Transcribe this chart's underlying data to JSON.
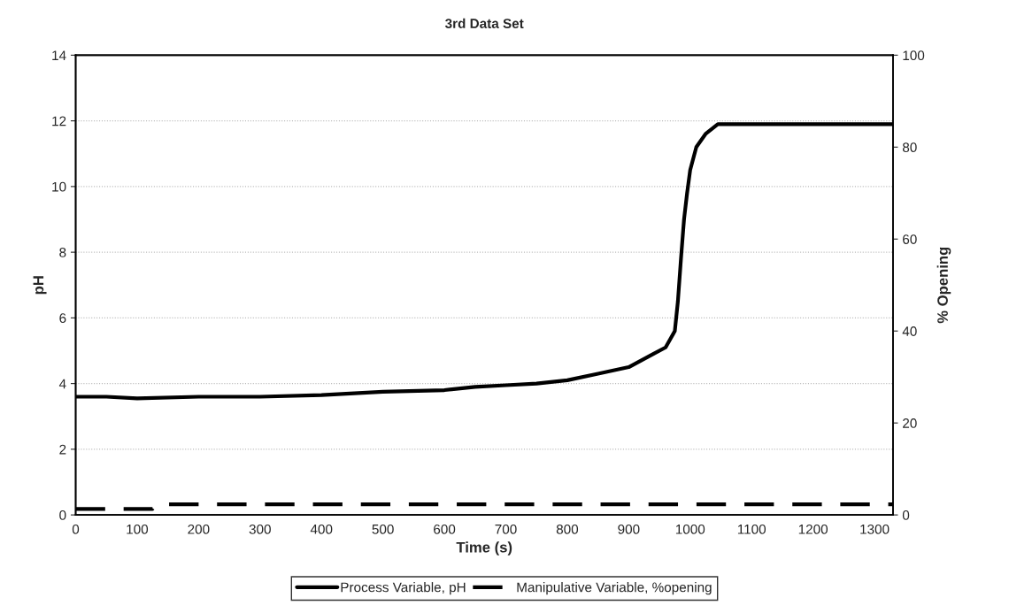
{
  "chart_data": {
    "type": "line",
    "title": "3rd Data Set",
    "xlabel": "Time (s)",
    "ylabel": "pH",
    "y2label": "% Opening",
    "xlim": [
      0,
      1330
    ],
    "xticks": [
      0,
      100,
      200,
      300,
      400,
      500,
      600,
      700,
      800,
      900,
      1000,
      1100,
      1200,
      1300
    ],
    "ylim": [
      0,
      14
    ],
    "yticks": [
      0,
      2,
      4,
      6,
      8,
      10,
      12,
      14
    ],
    "y2lim": [
      0,
      100
    ],
    "y2ticks": [
      0,
      20,
      40,
      60,
      80,
      100
    ],
    "grid": "y",
    "legend": "bottom",
    "series": [
      {
        "name": "Process Variable, pH",
        "color": "#000000",
        "line_style": "solid",
        "x": [
          0,
          50,
          100,
          200,
          300,
          400,
          500,
          600,
          650,
          700,
          750,
          800,
          850,
          900,
          920,
          940,
          960,
          975,
          980,
          985,
          990,
          995,
          1000,
          1010,
          1025,
          1045,
          1100,
          1200,
          1330
        ],
        "values": [
          3.6,
          3.6,
          3.55,
          3.6,
          3.6,
          3.65,
          3.75,
          3.8,
          3.9,
          3.95,
          4.0,
          4.1,
          4.3,
          4.5,
          4.7,
          4.9,
          5.1,
          5.6,
          6.5,
          7.8,
          9.0,
          9.8,
          10.5,
          11.2,
          11.6,
          11.9,
          11.9,
          11.9,
          11.9
        ]
      },
      {
        "name": "Manipulative Variable, %opening",
        "color": "#000000",
        "line_style": "dashed",
        "axis": "y2",
        "x": [
          0,
          125,
          130,
          1330
        ],
        "values": [
          1.3,
          1.3,
          2.3,
          2.3
        ]
      }
    ]
  }
}
